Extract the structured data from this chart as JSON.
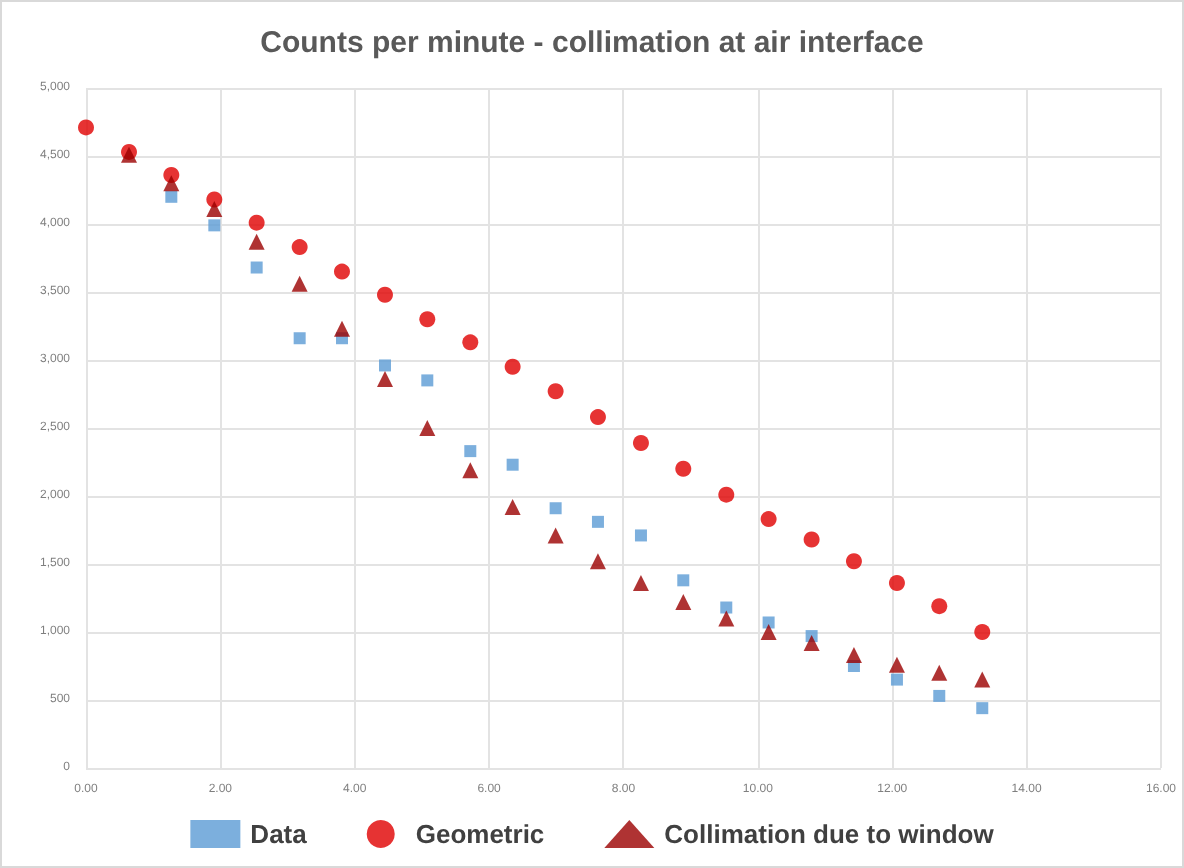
{
  "chart_data": {
    "type": "scatter",
    "title": "Counts per minute - collimation at air interface",
    "x": [
      0,
      0.64,
      1.27,
      1.91,
      2.54,
      3.18,
      3.81,
      4.45,
      5.08,
      5.72,
      6.35,
      6.99,
      7.62,
      8.26,
      8.89,
      9.53,
      10.16,
      10.8,
      11.43,
      12.07,
      12.7,
      13.34
    ],
    "series": [
      {
        "name": "Data",
        "color": "#5b9bd5",
        "marker": "square",
        "values": [
          null,
          null,
          4200,
          3990,
          3680,
          3160,
          3160,
          2960,
          2850,
          2330,
          2230,
          1910,
          1810,
          1710,
          1380,
          1180,
          1070,
          970,
          750,
          650,
          530,
          440
        ]
      },
      {
        "name": "Geometric",
        "color": "#e00000",
        "marker": "circle",
        "values": [
          4710,
          4530,
          4360,
          4180,
          4010,
          3830,
          3650,
          3480,
          3300,
          3130,
          2950,
          2770,
          2580,
          2390,
          2200,
          2010,
          1830,
          1680,
          1520,
          1360,
          1190,
          1000
        ]
      },
      {
        "name": "Collimation due to window",
        "color": "#9b0000",
        "marker": "triangle",
        "values": [
          null,
          4510,
          4300,
          4110,
          3870,
          3560,
          3230,
          2860,
          2500,
          2190,
          1920,
          1710,
          1520,
          1360,
          1220,
          1100,
          1000,
          920,
          830,
          760,
          700,
          650
        ]
      }
    ],
    "xlim": [
      0,
      16
    ],
    "xticks": [
      {
        "value": 0,
        "label": "0.00"
      },
      {
        "value": 2,
        "label": "2.00"
      },
      {
        "value": 4,
        "label": "4.00"
      },
      {
        "value": 6,
        "label": "6.00"
      },
      {
        "value": 8,
        "label": "8.00"
      },
      {
        "value": 10,
        "label": "10.00"
      },
      {
        "value": 12,
        "label": "12.00"
      },
      {
        "value": 14,
        "label": "14.00"
      },
      {
        "value": 16,
        "label": "16.00"
      }
    ],
    "ylim": [
      0,
      5000
    ],
    "yticks": [
      0,
      500,
      {
        "value": 1000,
        "label": "1,000"
      },
      {
        "value": 1500,
        "label": "1,500"
      },
      {
        "value": 2000,
        "label": "2,000"
      },
      {
        "value": 2500,
        "label": "2,500"
      },
      {
        "value": 3000,
        "label": "3,000"
      },
      {
        "value": 3500,
        "label": "3,500"
      },
      {
        "value": 4000,
        "label": "4,000"
      },
      {
        "value": 4500,
        "label": "4,500"
      },
      {
        "value": 5000,
        "label": "5,000"
      }
    ],
    "grid": true,
    "legend": "bottom"
  }
}
